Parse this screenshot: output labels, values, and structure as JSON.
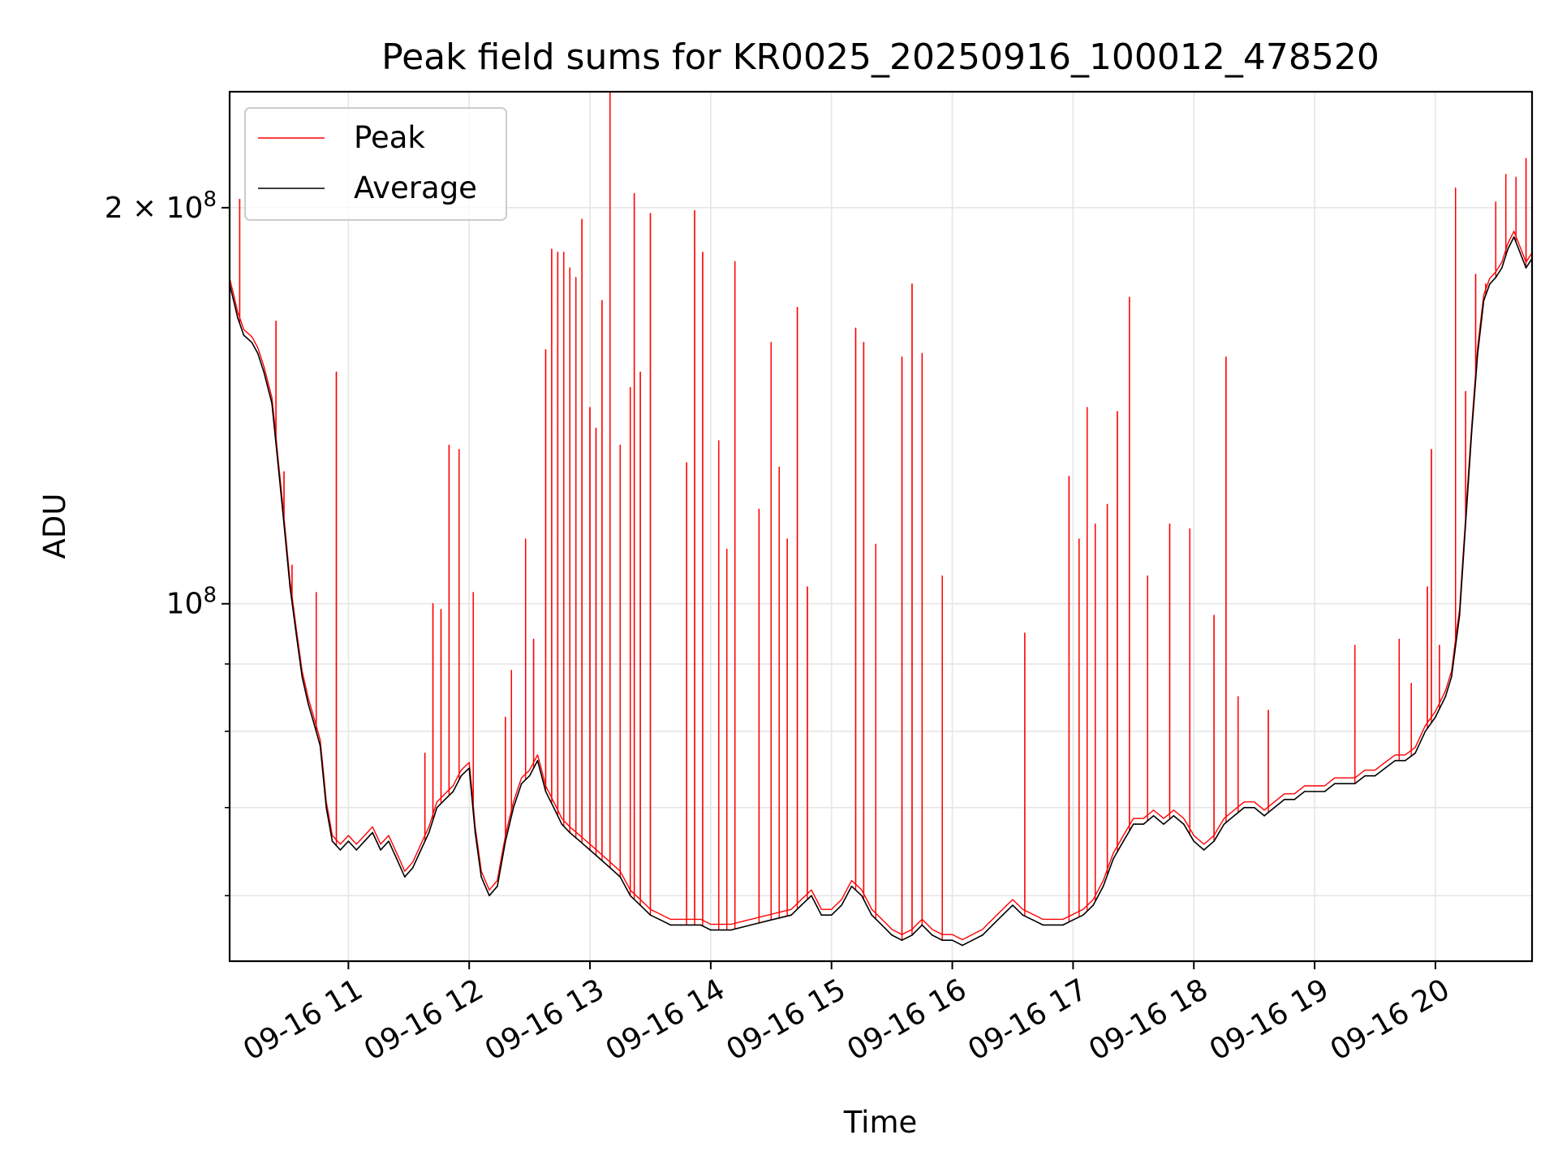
{
  "chart_data": {
    "type": "line",
    "title": "Peak field sums for KR0025_20250916_100012_478520",
    "xlabel": "Time",
    "ylabel": "ADU",
    "yscale": "log",
    "ylim": [
      53500000,
      245000000
    ],
    "xlim": [
      "09-16 10:01",
      "09-16 20:48"
    ],
    "grid": true,
    "legend_position": "upper-left",
    "colors": {
      "peak": "#ff0000",
      "average": "#000000",
      "grid": "#e6e6e6"
    },
    "x_tick_labels": [
      "09-16 11",
      "09-16 12",
      "09-16 13",
      "09-16 14",
      "09-16 15",
      "09-16 16",
      "09-16 17",
      "09-16 18",
      "09-16 19",
      "09-16 20"
    ],
    "y_tick_labels": [
      {
        "value": 200000000,
        "label": "2 × 10^8",
        "mantissa": "2",
        "exponent": "8"
      },
      {
        "value": 100000000,
        "label": "10^8",
        "mantissa": "",
        "exponent": "8"
      }
    ],
    "y_minor_ticks": [
      60000000,
      70000000,
      80000000,
      90000000
    ],
    "series": [
      {
        "name": "Average",
        "color": "#000000",
        "points": [
          [
            "10:01",
            175
          ],
          [
            "10:05",
            165
          ],
          [
            "10:08",
            160
          ],
          [
            "10:12",
            158
          ],
          [
            "10:15",
            155
          ],
          [
            "10:18",
            150
          ],
          [
            "10:22",
            142
          ],
          [
            "10:25",
            128
          ],
          [
            "10:28",
            115
          ],
          [
            "10:31",
            103
          ],
          [
            "10:34",
            95
          ],
          [
            "10:37",
            88
          ],
          [
            "10:40",
            84
          ],
          [
            "10:43",
            81
          ],
          [
            "10:46",
            78
          ],
          [
            "10:49",
            70
          ],
          [
            "10:52",
            66
          ],
          [
            "10:56",
            65
          ],
          [
            "11:00",
            66
          ],
          [
            "11:04",
            65
          ],
          [
            "11:08",
            66
          ],
          [
            "11:12",
            67
          ],
          [
            "11:16",
            65
          ],
          [
            "11:20",
            66
          ],
          [
            "11:24",
            64
          ],
          [
            "11:28",
            62
          ],
          [
            "11:32",
            63
          ],
          [
            "11:36",
            65
          ],
          [
            "11:40",
            67
          ],
          [
            "11:44",
            70
          ],
          [
            "11:48",
            71
          ],
          [
            "11:52",
            72
          ],
          [
            "11:56",
            74
          ],
          [
            "12:00",
            75
          ],
          [
            "12:03",
            67
          ],
          [
            "12:06",
            62
          ],
          [
            "12:10",
            60
          ],
          [
            "12:14",
            61
          ],
          [
            "12:18",
            66
          ],
          [
            "12:22",
            70
          ],
          [
            "12:26",
            73
          ],
          [
            "12:30",
            74
          ],
          [
            "12:34",
            76
          ],
          [
            "12:38",
            72
          ],
          [
            "12:42",
            70
          ],
          [
            "12:46",
            68
          ],
          [
            "12:50",
            67
          ],
          [
            "12:55",
            66
          ],
          [
            "13:00",
            65
          ],
          [
            "13:05",
            64
          ],
          [
            "13:10",
            63
          ],
          [
            "13:15",
            62
          ],
          [
            "13:20",
            60
          ],
          [
            "13:25",
            59
          ],
          [
            "13:30",
            58
          ],
          [
            "13:35",
            57.5
          ],
          [
            "13:40",
            57
          ],
          [
            "13:45",
            57
          ],
          [
            "13:50",
            57
          ],
          [
            "13:55",
            57
          ],
          [
            "14:00",
            56.5
          ],
          [
            "14:10",
            56.5
          ],
          [
            "14:20",
            57
          ],
          [
            "14:30",
            57.5
          ],
          [
            "14:40",
            58
          ],
          [
            "14:45",
            59
          ],
          [
            "14:50",
            60
          ],
          [
            "14:55",
            58
          ],
          [
            "15:00",
            58
          ],
          [
            "15:05",
            59
          ],
          [
            "15:10",
            61
          ],
          [
            "15:15",
            60
          ],
          [
            "15:20",
            58
          ],
          [
            "15:25",
            57
          ],
          [
            "15:30",
            56
          ],
          [
            "15:35",
            55.5
          ],
          [
            "15:40",
            56
          ],
          [
            "15:45",
            57
          ],
          [
            "15:50",
            56
          ],
          [
            "15:55",
            55.5
          ],
          [
            "16:00",
            55.5
          ],
          [
            "16:05",
            55
          ],
          [
            "16:10",
            55.5
          ],
          [
            "16:15",
            56
          ],
          [
            "16:20",
            57
          ],
          [
            "16:25",
            58
          ],
          [
            "16:30",
            59
          ],
          [
            "16:35",
            58
          ],
          [
            "16:40",
            57.5
          ],
          [
            "16:45",
            57
          ],
          [
            "16:50",
            57
          ],
          [
            "16:55",
            57
          ],
          [
            "17:00",
            57.5
          ],
          [
            "17:05",
            58
          ],
          [
            "17:10",
            59
          ],
          [
            "17:15",
            61
          ],
          [
            "17:20",
            64
          ],
          [
            "17:25",
            66
          ],
          [
            "17:30",
            68
          ],
          [
            "17:35",
            68
          ],
          [
            "17:40",
            69
          ],
          [
            "17:45",
            68
          ],
          [
            "17:50",
            69
          ],
          [
            "17:55",
            68
          ],
          [
            "18:00",
            66
          ],
          [
            "18:05",
            65
          ],
          [
            "18:10",
            66
          ],
          [
            "18:15",
            68
          ],
          [
            "18:20",
            69
          ],
          [
            "18:25",
            70
          ],
          [
            "18:30",
            70
          ],
          [
            "18:35",
            69
          ],
          [
            "18:40",
            70
          ],
          [
            "18:45",
            71
          ],
          [
            "18:50",
            71
          ],
          [
            "18:55",
            72
          ],
          [
            "19:00",
            72
          ],
          [
            "19:05",
            72
          ],
          [
            "19:10",
            73
          ],
          [
            "19:15",
            73
          ],
          [
            "19:20",
            73
          ],
          [
            "19:25",
            74
          ],
          [
            "19:30",
            74
          ],
          [
            "19:35",
            75
          ],
          [
            "19:40",
            76
          ],
          [
            "19:45",
            76
          ],
          [
            "19:50",
            77
          ],
          [
            "19:55",
            80
          ],
          [
            "20:00",
            82
          ],
          [
            "20:05",
            85
          ],
          [
            "20:08",
            88
          ],
          [
            "20:12",
            98
          ],
          [
            "20:15",
            115
          ],
          [
            "20:18",
            135
          ],
          [
            "20:21",
            155
          ],
          [
            "20:24",
            170
          ],
          [
            "20:27",
            175
          ],
          [
            "20:30",
            177
          ],
          [
            "20:33",
            180
          ],
          [
            "20:36",
            186
          ],
          [
            "20:39",
            190
          ],
          [
            "20:42",
            185
          ],
          [
            "20:45",
            180
          ],
          [
            "20:48",
            183
          ]
        ]
      },
      {
        "name": "Peak",
        "color": "#ff0000",
        "spikes": [
          [
            "10:06",
            203
          ],
          [
            "10:24",
            164
          ],
          [
            "10:28",
            126
          ],
          [
            "10:32",
            107
          ],
          [
            "10:44",
            102
          ],
          [
            "10:54",
            150
          ],
          [
            "11:38",
            77
          ],
          [
            "11:42",
            100
          ],
          [
            "11:46",
            99
          ],
          [
            "11:50",
            132
          ],
          [
            "11:55",
            131
          ],
          [
            "12:02",
            102
          ],
          [
            "12:18",
            82
          ],
          [
            "12:21",
            89
          ],
          [
            "12:28",
            112
          ],
          [
            "12:32",
            94
          ],
          [
            "12:38",
            156
          ],
          [
            "12:41",
            186
          ],
          [
            "12:44",
            185
          ],
          [
            "12:47",
            185
          ],
          [
            "12:50",
            180
          ],
          [
            "12:53",
            177
          ],
          [
            "12:56",
            196
          ],
          [
            "13:00",
            141
          ],
          [
            "13:03",
            136
          ],
          [
            "13:06",
            170
          ],
          [
            "13:10",
            245
          ],
          [
            "13:15",
            132
          ],
          [
            "13:20",
            146
          ],
          [
            "13:22",
            205
          ],
          [
            "13:25",
            150
          ],
          [
            "13:30",
            198
          ],
          [
            "13:48",
            128
          ],
          [
            "13:52",
            199
          ],
          [
            "13:56",
            185
          ],
          [
            "14:04",
            133
          ],
          [
            "14:08",
            110
          ],
          [
            "14:12",
            182
          ],
          [
            "14:24",
            118
          ],
          [
            "14:30",
            158
          ],
          [
            "14:34",
            127
          ],
          [
            "14:38",
            112
          ],
          [
            "14:43",
            168
          ],
          [
            "14:48",
            103
          ],
          [
            "15:12",
            162
          ],
          [
            "15:16",
            158
          ],
          [
            "15:22",
            111
          ],
          [
            "15:35",
            154
          ],
          [
            "15:40",
            175
          ],
          [
            "15:45",
            155
          ],
          [
            "15:55",
            105
          ],
          [
            "16:36",
            95
          ],
          [
            "16:58",
            125
          ],
          [
            "17:03",
            112
          ],
          [
            "17:07",
            141
          ],
          [
            "17:11",
            115
          ],
          [
            "17:17",
            119
          ],
          [
            "17:22",
            140
          ],
          [
            "17:28",
            171
          ],
          [
            "17:37",
            105
          ],
          [
            "17:48",
            115
          ],
          [
            "17:58",
            114
          ],
          [
            "18:10",
            98
          ],
          [
            "18:16",
            154
          ],
          [
            "18:22",
            85
          ],
          [
            "18:37",
            83
          ],
          [
            "19:20",
            93
          ],
          [
            "19:42",
            94
          ],
          [
            "19:48",
            87
          ],
          [
            "19:56",
            103
          ],
          [
            "19:58",
            131
          ],
          [
            "20:02",
            93
          ],
          [
            "20:10",
            207
          ],
          [
            "20:15",
            145
          ],
          [
            "20:20",
            178
          ],
          [
            "20:25",
            175
          ],
          [
            "20:30",
            202
          ],
          [
            "20:35",
            212
          ],
          [
            "20:40",
            211
          ],
          [
            "20:45",
            218
          ]
        ]
      }
    ]
  }
}
